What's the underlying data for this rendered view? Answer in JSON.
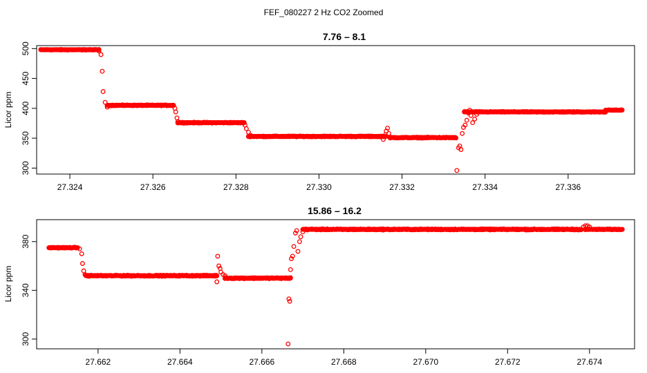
{
  "figure": {
    "title": "FEF_080227  2 Hz CO2 Zoomed"
  },
  "chart_data": [
    {
      "type": "scatter",
      "title": "7.76 – 8.1",
      "xlabel": "",
      "ylabel": "Licor ppm",
      "xlim": [
        27.3232,
        27.3376
      ],
      "ylim": [
        290,
        505
      ],
      "x_ticks": [
        27.324,
        27.326,
        27.328,
        27.33,
        27.332,
        27.334,
        27.336
      ],
      "x_tick_labels": [
        "27.324",
        "27.326",
        "27.328",
        "27.330",
        "27.332",
        "27.334",
        "27.336"
      ],
      "y_ticks": [
        300,
        350,
        400,
        450,
        500
      ],
      "y_tick_labels": [
        "300",
        "350",
        "400",
        "450",
        "500"
      ],
      "marker": "open-circle",
      "color": "#ff0000",
      "segments": [
        {
          "x0": 27.3233,
          "x1": 27.3247,
          "y": 498,
          "noise": 0.8
        },
        {
          "x0": 27.3249,
          "x1": 27.3265,
          "y": 405,
          "noise": 1.0
        },
        {
          "x0": 27.3266,
          "x1": 27.3282,
          "y": 376,
          "noise": 1.0
        },
        {
          "x0": 27.3283,
          "x1": 27.3316,
          "y": 353,
          "noise": 1.0
        },
        {
          "x0": 27.3317,
          "x1": 27.3333,
          "y": 351,
          "noise": 1.0
        },
        {
          "x0": 27.3335,
          "x1": 27.3369,
          "y": 394,
          "noise": 0.9
        },
        {
          "x0": 27.3369,
          "x1": 27.3373,
          "y": 397,
          "noise": 0.8
        }
      ],
      "points": [
        [
          27.3247,
          496
        ],
        [
          27.32475,
          490
        ],
        [
          27.32478,
          462
        ],
        [
          27.3248,
          428
        ],
        [
          27.32485,
          410
        ],
        [
          27.3249,
          402
        ],
        [
          27.32653,
          400
        ],
        [
          27.32655,
          394
        ],
        [
          27.32658,
          384
        ],
        [
          27.3266,
          378
        ],
        [
          27.32822,
          372
        ],
        [
          27.32825,
          366
        ],
        [
          27.3283,
          360
        ],
        [
          27.32835,
          355
        ],
        [
          27.3316,
          356
        ],
        [
          27.33162,
          362
        ],
        [
          27.33165,
          367
        ],
        [
          27.33168,
          358
        ],
        [
          27.33155,
          348
        ],
        [
          27.33332,
          296
        ],
        [
          27.33336,
          334
        ],
        [
          27.33339,
          337
        ],
        [
          27.33342,
          331
        ],
        [
          27.33345,
          358
        ],
        [
          27.33348,
          368
        ],
        [
          27.33352,
          372
        ],
        [
          27.33356,
          380
        ],
        [
          27.3336,
          392
        ],
        [
          27.33363,
          397
        ],
        [
          27.33366,
          388
        ],
        [
          27.3337,
          376
        ],
        [
          27.33375,
          382
        ],
        [
          27.3338,
          390
        ]
      ]
    },
    {
      "type": "scatter",
      "title": "15.86 – 16.2",
      "xlabel": "",
      "ylabel": "Licor ppm",
      "xlim": [
        27.6605,
        27.6751
      ],
      "ylim": [
        292,
        398
      ],
      "x_ticks": [
        27.662,
        27.664,
        27.666,
        27.668,
        27.67,
        27.672,
        27.674
      ],
      "x_tick_labels": [
        "27.662",
        "27.664",
        "27.666",
        "27.668",
        "27.670",
        "27.672",
        "27.674"
      ],
      "y_ticks": [
        300,
        340,
        380
      ],
      "y_tick_labels": [
        "300",
        "340",
        "380"
      ],
      "marker": "open-circle",
      "color": "#ff0000",
      "segments": [
        {
          "x0": 27.6608,
          "x1": 27.6615,
          "y": 375,
          "noise": 0.5
        },
        {
          "x0": 27.6617,
          "x1": 27.6649,
          "y": 352,
          "noise": 0.6
        },
        {
          "x0": 27.6651,
          "x1": 27.6667,
          "y": 350,
          "noise": 0.6
        },
        {
          "x0": 27.667,
          "x1": 27.6738,
          "y": 390,
          "noise": 0.6
        },
        {
          "x0": 27.6739,
          "x1": 27.6748,
          "y": 390,
          "noise": 0.5
        }
      ],
      "points": [
        [
          27.66155,
          374
        ],
        [
          27.6616,
          370
        ],
        [
          27.66162,
          362
        ],
        [
          27.66165,
          356
        ],
        [
          27.66168,
          353
        ],
        [
          27.6649,
          347
        ],
        [
          27.66492,
          368
        ],
        [
          27.66495,
          360
        ],
        [
          27.66498,
          358
        ],
        [
          27.665,
          355
        ],
        [
          27.66505,
          353
        ],
        [
          27.6651,
          352
        ],
        [
          27.66664,
          296
        ],
        [
          27.66666,
          333
        ],
        [
          27.66668,
          331
        ],
        [
          27.6667,
          357
        ],
        [
          27.66672,
          366
        ],
        [
          27.66675,
          368
        ],
        [
          27.66678,
          376
        ],
        [
          27.66682,
          387
        ],
        [
          27.66685,
          389
        ],
        [
          27.66688,
          372
        ],
        [
          27.66692,
          380
        ],
        [
          27.66695,
          384
        ],
        [
          27.667,
          388
        ],
        [
          27.67385,
          392
        ],
        [
          27.6739,
          393
        ],
        [
          27.67395,
          393
        ],
        [
          27.674,
          392
        ]
      ]
    }
  ]
}
